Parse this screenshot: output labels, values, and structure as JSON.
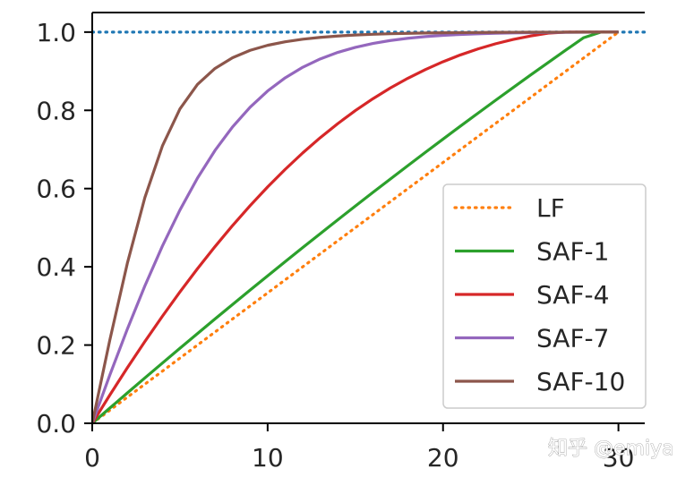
{
  "chart_data": {
    "type": "line",
    "title": "",
    "xlabel": "",
    "ylabel": "",
    "xlim": [
      0,
      31.5
    ],
    "ylim": [
      0,
      1.05
    ],
    "xticks": [
      0,
      10,
      20,
      30
    ],
    "xtick_labels": [
      "0",
      "10",
      "20",
      "30"
    ],
    "yticks": [
      0.0,
      0.2,
      0.4,
      0.6,
      0.8,
      1.0
    ],
    "ytick_labels": [
      "0.0",
      "0.2",
      "0.4",
      "0.6",
      "0.8",
      "1.0"
    ],
    "grid": false,
    "legend_position": "bottom-right",
    "reference_line": {
      "y": 1.0,
      "style": "dotted",
      "color": "#1f77b4"
    },
    "x": [
      0,
      1,
      2,
      3,
      4,
      5,
      6,
      7,
      8,
      9,
      10,
      11,
      12,
      13,
      14,
      15,
      16,
      17,
      18,
      19,
      20,
      21,
      22,
      23,
      24,
      25,
      26,
      27,
      28,
      29,
      30
    ],
    "series": [
      {
        "name": "LF",
        "color": "#ff7f0e",
        "style": "dotted",
        "values": [
          0.0,
          0.0333,
          0.0667,
          0.1,
          0.1333,
          0.1667,
          0.2,
          0.2333,
          0.2667,
          0.3,
          0.3333,
          0.3667,
          0.4,
          0.4333,
          0.4667,
          0.5,
          0.5333,
          0.5667,
          0.6,
          0.6333,
          0.6667,
          0.7,
          0.7333,
          0.7667,
          0.8,
          0.8333,
          0.8667,
          0.9,
          0.9333,
          0.9667,
          1.0
        ]
      },
      {
        "name": "SAF-1",
        "color": "#2ca02c",
        "style": "solid",
        "values": [
          0.0,
          0.0389,
          0.0775,
          0.1159,
          0.154,
          0.1918,
          0.2294,
          0.2667,
          0.3037,
          0.3405,
          0.377,
          0.4132,
          0.4491,
          0.4848,
          0.5202,
          0.5553,
          0.5901,
          0.6246,
          0.6589,
          0.6929,
          0.7265,
          0.7599,
          0.793,
          0.8258,
          0.8583,
          0.8905,
          0.9224,
          0.954,
          0.9853,
          1.0,
          1.0
        ]
      },
      {
        "name": "SAF-4",
        "color": "#d62728",
        "style": "solid",
        "values": [
          0.0,
          0.0721,
          0.1418,
          0.209,
          0.2737,
          0.3358,
          0.3952,
          0.4517,
          0.5055,
          0.5563,
          0.6042,
          0.6491,
          0.6911,
          0.7301,
          0.7661,
          0.7993,
          0.8296,
          0.8572,
          0.8821,
          0.9044,
          0.9243,
          0.9418,
          0.9571,
          0.9702,
          0.9812,
          0.9902,
          0.9972,
          1.0,
          1.0,
          1.0,
          1.0
        ]
      },
      {
        "name": "SAF-7",
        "color": "#9467bd",
        "style": "solid",
        "values": [
          0.0,
          0.1231,
          0.2407,
          0.3512,
          0.4531,
          0.5452,
          0.6267,
          0.6975,
          0.7577,
          0.808,
          0.8495,
          0.8831,
          0.9101,
          0.9314,
          0.9481,
          0.961,
          0.9709,
          0.9785,
          0.9842,
          0.9885,
          0.9917,
          0.994,
          0.9957,
          0.997,
          0.9979,
          0.9985,
          0.999,
          0.9993,
          0.9996,
          0.9998,
          1.0
        ]
      },
      {
        "name": "SAF-10",
        "color": "#8c564b",
        "style": "solid",
        "values": [
          0.0,
          0.2124,
          0.4087,
          0.5769,
          0.7089,
          0.8036,
          0.8662,
          0.9071,
          0.9345,
          0.9533,
          0.9662,
          0.9753,
          0.9818,
          0.9865,
          0.99,
          0.9925,
          0.9944,
          0.9958,
          0.9968,
          0.9976,
          0.9982,
          0.9987,
          0.999,
          0.9993,
          0.9995,
          0.9996,
          0.9997,
          0.9998,
          0.9999,
          0.9999,
          1.0
        ]
      }
    ]
  },
  "watermark": {
    "text": "知乎 @emiya"
  }
}
